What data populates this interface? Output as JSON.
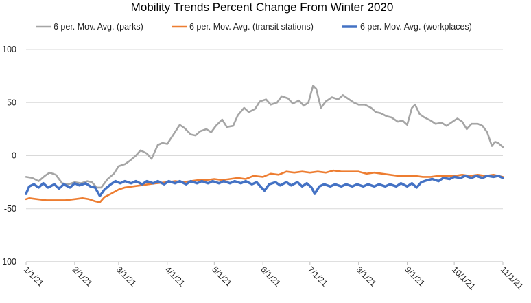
{
  "chart_data": {
    "type": "line",
    "title": "Mobility Trends Percent Change From Winter 2020",
    "xlabel": "",
    "ylabel": "",
    "ylim": [
      -100,
      100
    ],
    "y_ticks": [
      -100,
      -50,
      0,
      50,
      100
    ],
    "x_ticks": [
      "1/1/21",
      "2/1/21",
      "3/1/21",
      "4/1/21",
      "5/1/21",
      "6/1/21",
      "7/1/21",
      "8/1/21",
      "9/1/21",
      "10/1/21",
      "11/1/21"
    ],
    "xlim": [
      "2021-01-01",
      "2021-11-01"
    ],
    "grid": {
      "horizontal": true,
      "vertical": false
    },
    "legend": {
      "position": "top"
    },
    "series": [
      {
        "name": "6 per. Mov. Avg. (parks)",
        "color": "#a5a5a5",
        "points": [
          [
            "2021-01-01",
            -20
          ],
          [
            "2021-01-05",
            -21
          ],
          [
            "2021-01-09",
            -24
          ],
          [
            "2021-01-13",
            -19
          ],
          [
            "2021-01-16",
            -16
          ],
          [
            "2021-01-20",
            -18
          ],
          [
            "2021-01-24",
            -26
          ],
          [
            "2021-01-28",
            -27
          ],
          [
            "2021-02-01",
            -25
          ],
          [
            "2021-02-05",
            -26
          ],
          [
            "2021-02-09",
            -24
          ],
          [
            "2021-02-12",
            -25
          ],
          [
            "2021-02-15",
            -30
          ],
          [
            "2021-02-18",
            -30
          ],
          [
            "2021-02-22",
            -22
          ],
          [
            "2021-02-26",
            -17
          ],
          [
            "2021-03-01",
            -10
          ],
          [
            "2021-03-05",
            -8
          ],
          [
            "2021-03-08",
            -5
          ],
          [
            "2021-03-12",
            0
          ],
          [
            "2021-03-15",
            5
          ],
          [
            "2021-03-19",
            2
          ],
          [
            "2021-03-22",
            -3
          ],
          [
            "2021-03-26",
            10
          ],
          [
            "2021-03-29",
            12
          ],
          [
            "2021-04-01",
            11
          ],
          [
            "2021-04-05",
            20
          ],
          [
            "2021-04-09",
            29
          ],
          [
            "2021-04-12",
            26
          ],
          [
            "2021-04-16",
            20
          ],
          [
            "2021-04-19",
            19
          ],
          [
            "2021-04-22",
            23
          ],
          [
            "2021-04-26",
            25
          ],
          [
            "2021-04-29",
            22
          ],
          [
            "2021-05-02",
            28
          ],
          [
            "2021-05-06",
            34
          ],
          [
            "2021-05-09",
            27
          ],
          [
            "2021-05-13",
            28
          ],
          [
            "2021-05-16",
            38
          ],
          [
            "2021-05-20",
            45
          ],
          [
            "2021-05-23",
            41
          ],
          [
            "2021-05-27",
            44
          ],
          [
            "2021-05-30",
            51
          ],
          [
            "2021-06-03",
            53
          ],
          [
            "2021-06-06",
            48
          ],
          [
            "2021-06-10",
            50
          ],
          [
            "2021-06-13",
            56
          ],
          [
            "2021-06-17",
            54
          ],
          [
            "2021-06-20",
            49
          ],
          [
            "2021-06-24",
            52
          ],
          [
            "2021-06-27",
            47
          ],
          [
            "2021-06-30",
            50
          ],
          [
            "2021-07-03",
            66
          ],
          [
            "2021-07-05",
            63
          ],
          [
            "2021-07-08",
            45
          ],
          [
            "2021-07-11",
            51
          ],
          [
            "2021-07-15",
            55
          ],
          [
            "2021-07-19",
            53
          ],
          [
            "2021-07-22",
            57
          ],
          [
            "2021-07-25",
            54
          ],
          [
            "2021-07-29",
            50
          ],
          [
            "2021-08-01",
            48
          ],
          [
            "2021-08-05",
            48
          ],
          [
            "2021-08-09",
            45
          ],
          [
            "2021-08-12",
            41
          ],
          [
            "2021-08-15",
            40
          ],
          [
            "2021-08-19",
            37
          ],
          [
            "2021-08-22",
            36
          ],
          [
            "2021-08-26",
            32
          ],
          [
            "2021-08-29",
            33
          ],
          [
            "2021-09-01",
            29
          ],
          [
            "2021-09-04",
            45
          ],
          [
            "2021-09-06",
            48
          ],
          [
            "2021-09-09",
            39
          ],
          [
            "2021-09-12",
            36
          ],
          [
            "2021-09-16",
            33
          ],
          [
            "2021-09-19",
            30
          ],
          [
            "2021-09-23",
            31
          ],
          [
            "2021-09-26",
            28
          ],
          [
            "2021-09-30",
            32
          ],
          [
            "2021-10-03",
            35
          ],
          [
            "2021-10-06",
            32
          ],
          [
            "2021-10-09",
            25
          ],
          [
            "2021-10-12",
            30
          ],
          [
            "2021-10-16",
            30
          ],
          [
            "2021-10-19",
            28
          ],
          [
            "2021-10-22",
            22
          ],
          [
            "2021-10-25",
            9
          ],
          [
            "2021-10-27",
            13
          ],
          [
            "2021-10-29",
            12
          ],
          [
            "2021-11-01",
            8
          ]
        ]
      },
      {
        "name": "6 per. Mov. Avg. (transit stations)",
        "color": "#ed7d31",
        "points": [
          [
            "2021-01-01",
            -41
          ],
          [
            "2021-01-03",
            -40
          ],
          [
            "2021-01-08",
            -41
          ],
          [
            "2021-01-14",
            -42
          ],
          [
            "2021-01-20",
            -42
          ],
          [
            "2021-01-26",
            -42
          ],
          [
            "2021-02-01",
            -41
          ],
          [
            "2021-02-06",
            -40
          ],
          [
            "2021-02-10",
            -41
          ],
          [
            "2021-02-14",
            -43
          ],
          [
            "2021-02-17",
            -44
          ],
          [
            "2021-02-20",
            -39
          ],
          [
            "2021-02-24",
            -36
          ],
          [
            "2021-03-01",
            -32
          ],
          [
            "2021-03-05",
            -30
          ],
          [
            "2021-03-10",
            -29
          ],
          [
            "2021-03-15",
            -28
          ],
          [
            "2021-03-20",
            -27
          ],
          [
            "2021-03-25",
            -26
          ],
          [
            "2021-04-01",
            -25
          ],
          [
            "2021-04-06",
            -24
          ],
          [
            "2021-04-11",
            -25
          ],
          [
            "2021-04-16",
            -24
          ],
          [
            "2021-04-21",
            -23
          ],
          [
            "2021-04-26",
            -23
          ],
          [
            "2021-05-01",
            -22
          ],
          [
            "2021-05-06",
            -23
          ],
          [
            "2021-05-11",
            -22
          ],
          [
            "2021-05-16",
            -21
          ],
          [
            "2021-05-21",
            -22
          ],
          [
            "2021-05-26",
            -19
          ],
          [
            "2021-06-01",
            -20
          ],
          [
            "2021-06-06",
            -17
          ],
          [
            "2021-06-11",
            -18
          ],
          [
            "2021-06-16",
            -15
          ],
          [
            "2021-06-21",
            -16
          ],
          [
            "2021-06-26",
            -15
          ],
          [
            "2021-07-01",
            -16
          ],
          [
            "2021-07-06",
            -15
          ],
          [
            "2021-07-11",
            -16
          ],
          [
            "2021-07-16",
            -14
          ],
          [
            "2021-07-21",
            -15
          ],
          [
            "2021-07-26",
            -15
          ],
          [
            "2021-08-01",
            -15
          ],
          [
            "2021-08-06",
            -17
          ],
          [
            "2021-08-11",
            -16
          ],
          [
            "2021-08-16",
            -17
          ],
          [
            "2021-08-21",
            -18
          ],
          [
            "2021-08-26",
            -19
          ],
          [
            "2021-09-01",
            -19
          ],
          [
            "2021-09-06",
            -19
          ],
          [
            "2021-09-11",
            -20
          ],
          [
            "2021-09-16",
            -20
          ],
          [
            "2021-09-21",
            -19
          ],
          [
            "2021-09-26",
            -19
          ],
          [
            "2021-10-01",
            -19
          ],
          [
            "2021-10-06",
            -18
          ],
          [
            "2021-10-11",
            -19
          ],
          [
            "2021-10-16",
            -18
          ],
          [
            "2021-10-21",
            -19
          ],
          [
            "2021-10-26",
            -18
          ],
          [
            "2021-11-01",
            -20
          ]
        ]
      },
      {
        "name": "6 per. Mov. Avg. (workplaces)",
        "color": "#4472c4",
        "points": [
          [
            "2021-01-01",
            -36
          ],
          [
            "2021-01-03",
            -29
          ],
          [
            "2021-01-06",
            -27
          ],
          [
            "2021-01-09",
            -30
          ],
          [
            "2021-01-12",
            -26
          ],
          [
            "2021-01-15",
            -30
          ],
          [
            "2021-01-19",
            -27
          ],
          [
            "2021-01-22",
            -31
          ],
          [
            "2021-01-25",
            -27
          ],
          [
            "2021-01-29",
            -30
          ],
          [
            "2021-02-01",
            -26
          ],
          [
            "2021-02-04",
            -28
          ],
          [
            "2021-02-08",
            -26
          ],
          [
            "2021-02-11",
            -29
          ],
          [
            "2021-02-14",
            -30
          ],
          [
            "2021-02-17",
            -38
          ],
          [
            "2021-02-20",
            -32
          ],
          [
            "2021-02-24",
            -27
          ],
          [
            "2021-02-27",
            -24
          ],
          [
            "2021-03-02",
            -26
          ],
          [
            "2021-03-05",
            -24
          ],
          [
            "2021-03-09",
            -26
          ],
          [
            "2021-03-12",
            -24
          ],
          [
            "2021-03-16",
            -27
          ],
          [
            "2021-03-19",
            -24
          ],
          [
            "2021-03-23",
            -26
          ],
          [
            "2021-03-26",
            -24
          ],
          [
            "2021-03-30",
            -27
          ],
          [
            "2021-04-02",
            -24
          ],
          [
            "2021-04-06",
            -26
          ],
          [
            "2021-04-09",
            -24
          ],
          [
            "2021-04-13",
            -27
          ],
          [
            "2021-04-16",
            -24
          ],
          [
            "2021-04-20",
            -26
          ],
          [
            "2021-04-23",
            -24
          ],
          [
            "2021-04-27",
            -26
          ],
          [
            "2021-04-30",
            -24
          ],
          [
            "2021-05-04",
            -26
          ],
          [
            "2021-05-07",
            -24
          ],
          [
            "2021-05-11",
            -26
          ],
          [
            "2021-05-14",
            -24
          ],
          [
            "2021-05-18",
            -26
          ],
          [
            "2021-05-21",
            -24
          ],
          [
            "2021-05-25",
            -27
          ],
          [
            "2021-05-28",
            -25
          ],
          [
            "2021-05-31",
            -30
          ],
          [
            "2021-06-02",
            -33
          ],
          [
            "2021-06-05",
            -27
          ],
          [
            "2021-06-09",
            -25
          ],
          [
            "2021-06-12",
            -28
          ],
          [
            "2021-06-16",
            -25
          ],
          [
            "2021-06-19",
            -28
          ],
          [
            "2021-06-23",
            -25
          ],
          [
            "2021-06-26",
            -29
          ],
          [
            "2021-06-29",
            -26
          ],
          [
            "2021-07-02",
            -30
          ],
          [
            "2021-07-04",
            -36
          ],
          [
            "2021-07-07",
            -29
          ],
          [
            "2021-07-10",
            -27
          ],
          [
            "2021-07-14",
            -29
          ],
          [
            "2021-07-17",
            -27
          ],
          [
            "2021-07-21",
            -29
          ],
          [
            "2021-07-24",
            -27
          ],
          [
            "2021-07-28",
            -29
          ],
          [
            "2021-07-31",
            -27
          ],
          [
            "2021-08-04",
            -29
          ],
          [
            "2021-08-07",
            -27
          ],
          [
            "2021-08-11",
            -29
          ],
          [
            "2021-08-14",
            -27
          ],
          [
            "2021-08-18",
            -29
          ],
          [
            "2021-08-21",
            -27
          ],
          [
            "2021-08-25",
            -29
          ],
          [
            "2021-08-28",
            -26
          ],
          [
            "2021-09-01",
            -29
          ],
          [
            "2021-09-04",
            -26
          ],
          [
            "2021-09-07",
            -30
          ],
          [
            "2021-09-10",
            -25
          ],
          [
            "2021-09-14",
            -23
          ],
          [
            "2021-09-17",
            -22
          ],
          [
            "2021-09-21",
            -24
          ],
          [
            "2021-09-24",
            -21
          ],
          [
            "2021-09-28",
            -22
          ],
          [
            "2021-10-01",
            -20
          ],
          [
            "2021-10-05",
            -21
          ],
          [
            "2021-10-08",
            -19
          ],
          [
            "2021-10-12",
            -21
          ],
          [
            "2021-10-15",
            -19
          ],
          [
            "2021-10-19",
            -21
          ],
          [
            "2021-10-22",
            -19
          ],
          [
            "2021-10-26",
            -20
          ],
          [
            "2021-10-29",
            -19
          ],
          [
            "2021-11-01",
            -21
          ]
        ]
      }
    ]
  }
}
